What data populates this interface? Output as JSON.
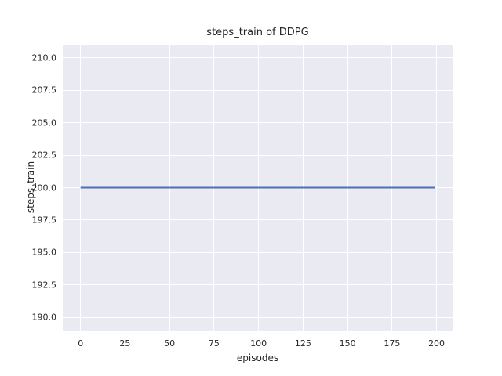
{
  "chart_data": {
    "type": "line",
    "title": "steps_train of DDPG",
    "xlabel": "episodes",
    "ylabel": "steps_train",
    "xlim": [
      -10,
      209
    ],
    "ylim": [
      189,
      211
    ],
    "xticks": [
      0,
      25,
      50,
      75,
      100,
      125,
      150,
      175,
      200
    ],
    "xtick_labels": [
      "0",
      "25",
      "50",
      "75",
      "100",
      "125",
      "150",
      "175",
      "200"
    ],
    "yticks": [
      190,
      192.5,
      195,
      197.5,
      200,
      202.5,
      205,
      207.5,
      210
    ],
    "ytick_labels": [
      "190.0",
      "192.5",
      "195.0",
      "197.5",
      "200.0",
      "202.5",
      "205.0",
      "207.5",
      "210.0"
    ],
    "grid": true,
    "legend": false,
    "series": [
      {
        "name": "steps_train",
        "x": [
          0,
          199
        ],
        "y": [
          200,
          200
        ],
        "color": "#4c72b0",
        "line_width": 2
      }
    ]
  },
  "colors": {
    "figure_bg": "#ffffff",
    "axes_bg": "#eaeaf2",
    "grid": "#ffffff",
    "text": "#262626"
  }
}
